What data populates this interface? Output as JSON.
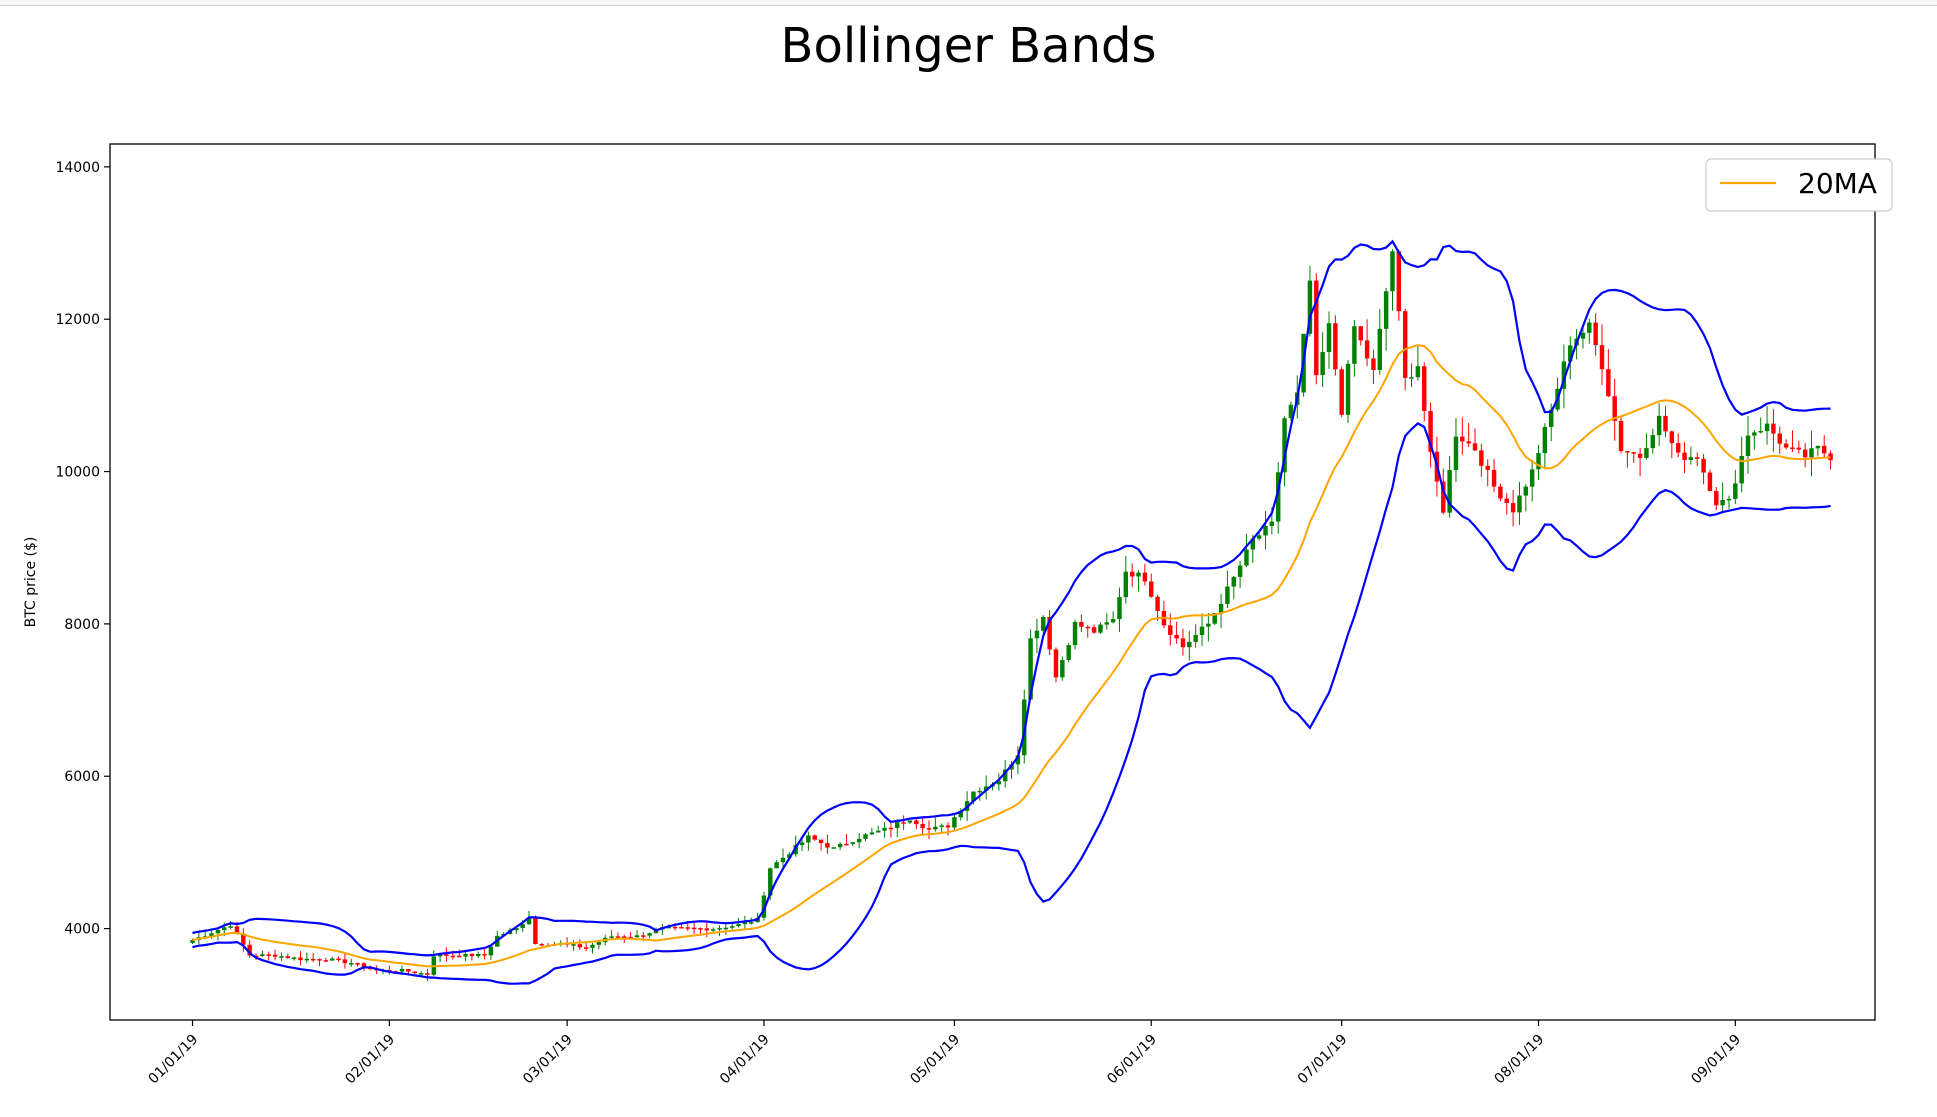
{
  "chart_data": {
    "type": "candlestick",
    "title": "Bollinger Bands",
    "ylabel": "BTC price ($)",
    "xlabel": "",
    "ylim": [
      2800,
      14300
    ],
    "xlim": [
      "2018-12-19",
      "2019-09-23"
    ],
    "yticks": [
      4000,
      6000,
      8000,
      10000,
      12000,
      14000
    ],
    "xticks": [
      {
        "date": "2019-01-01",
        "label": "01/01/19"
      },
      {
        "date": "2019-02-01",
        "label": "02/01/19"
      },
      {
        "date": "2019-03-01",
        "label": "03/01/19"
      },
      {
        "date": "2019-04-01",
        "label": "04/01/19"
      },
      {
        "date": "2019-05-01",
        "label": "05/01/19"
      },
      {
        "date": "2019-06-01",
        "label": "06/01/19"
      },
      {
        "date": "2019-07-01",
        "label": "07/01/19"
      },
      {
        "date": "2019-08-01",
        "label": "08/01/19"
      },
      {
        "date": "2019-09-01",
        "label": "09/01/19"
      }
    ],
    "legend": {
      "position": "top-right",
      "entries": [
        {
          "label": "20MA",
          "color": "#ffa500"
        }
      ]
    },
    "grid": false,
    "colors": {
      "up": "#008000",
      "down": "#ff0000",
      "ma": "#ffa500",
      "bands": "#0000ff"
    },
    "close_anchors": [
      [
        "2019-01-01",
        3850
      ],
      [
        "2019-01-04",
        3950
      ],
      [
        "2019-01-07",
        4050
      ],
      [
        "2019-01-10",
        3650
      ],
      [
        "2019-01-14",
        3650
      ],
      [
        "2019-01-18",
        3600
      ],
      [
        "2019-01-22",
        3600
      ],
      [
        "2019-01-26",
        3550
      ],
      [
        "2019-01-30",
        3450
      ],
      [
        "2019-02-03",
        3450
      ],
      [
        "2019-02-07",
        3400
      ],
      [
        "2019-02-08",
        3650
      ],
      [
        "2019-02-12",
        3650
      ],
      [
        "2019-02-16",
        3650
      ],
      [
        "2019-02-18",
        3900
      ],
      [
        "2019-02-21",
        4000
      ],
      [
        "2019-02-23",
        4150
      ],
      [
        "2019-02-24",
        3800
      ],
      [
        "2019-02-28",
        3800
      ],
      [
        "2019-03-04",
        3750
      ],
      [
        "2019-03-08",
        3900
      ],
      [
        "2019-03-12",
        3900
      ],
      [
        "2019-03-16",
        4000
      ],
      [
        "2019-03-20",
        4000
      ],
      [
        "2019-03-24",
        4000
      ],
      [
        "2019-03-28",
        4050
      ],
      [
        "2019-03-31",
        4120
      ],
      [
        "2019-04-02",
        4800
      ],
      [
        "2019-04-05",
        5000
      ],
      [
        "2019-04-08",
        5200
      ],
      [
        "2019-04-12",
        5050
      ],
      [
        "2019-04-16",
        5200
      ],
      [
        "2019-04-20",
        5300
      ],
      [
        "2019-04-24",
        5450
      ],
      [
        "2019-04-27",
        5300
      ],
      [
        "2019-04-30",
        5350
      ],
      [
        "2019-05-04",
        5800
      ],
      [
        "2019-05-08",
        5950
      ],
      [
        "2019-05-11",
        6300
      ],
      [
        "2019-05-13",
        7800
      ],
      [
        "2019-05-15",
        8100
      ],
      [
        "2019-05-17",
        7300
      ],
      [
        "2019-05-20",
        8000
      ],
      [
        "2019-05-23",
        7900
      ],
      [
        "2019-05-26",
        8050
      ],
      [
        "2019-05-28",
        8700
      ],
      [
        "2019-05-31",
        8600
      ],
      [
        "2019-06-03",
        8000
      ],
      [
        "2019-06-06",
        7700
      ],
      [
        "2019-06-10",
        8000
      ],
      [
        "2019-06-14",
        8600
      ],
      [
        "2019-06-17",
        9100
      ],
      [
        "2019-06-20",
        9300
      ],
      [
        "2019-06-22",
        10700
      ],
      [
        "2019-06-24",
        11000
      ],
      [
        "2019-06-26",
        12500
      ],
      [
        "2019-06-27",
        11200
      ],
      [
        "2019-06-29",
        11900
      ],
      [
        "2019-07-01",
        10800
      ],
      [
        "2019-07-03",
        11900
      ],
      [
        "2019-07-06",
        11300
      ],
      [
        "2019-07-09",
        12900
      ],
      [
        "2019-07-11",
        11200
      ],
      [
        "2019-07-13",
        11400
      ],
      [
        "2019-07-15",
        10200
      ],
      [
        "2019-07-17",
        9500
      ],
      [
        "2019-07-19",
        10500
      ],
      [
        "2019-07-22",
        10300
      ],
      [
        "2019-07-25",
        9800
      ],
      [
        "2019-07-28",
        9500
      ],
      [
        "2019-07-31",
        10000
      ],
      [
        "2019-08-03",
        10800
      ],
      [
        "2019-08-06",
        11700
      ],
      [
        "2019-08-09",
        11900
      ],
      [
        "2019-08-11",
        11400
      ],
      [
        "2019-08-14",
        10300
      ],
      [
        "2019-08-17",
        10200
      ],
      [
        "2019-08-20",
        10700
      ],
      [
        "2019-08-23",
        10200
      ],
      [
        "2019-08-26",
        10200
      ],
      [
        "2019-08-29",
        9600
      ],
      [
        "2019-08-31",
        9600
      ],
      [
        "2019-09-03",
        10500
      ],
      [
        "2019-09-06",
        10600
      ],
      [
        "2019-09-09",
        10300
      ],
      [
        "2019-09-12",
        10200
      ],
      [
        "2019-09-14",
        10300
      ],
      [
        "2019-09-16",
        10200
      ]
    ]
  }
}
